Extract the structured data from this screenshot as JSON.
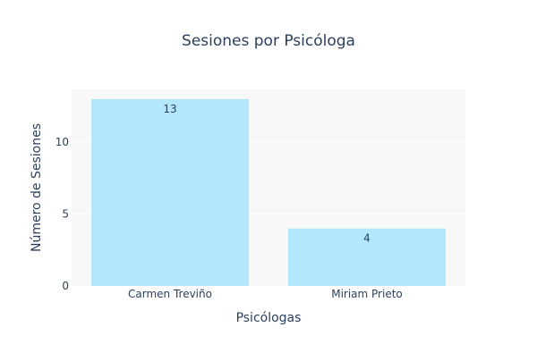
{
  "chart_data": {
    "type": "bar",
    "title": "Sesiones por Psicóloga",
    "xlabel": "Psicólogas",
    "ylabel": "Número de Sesiones",
    "categories": [
      "Carmen Treviño",
      "Miriam Prieto"
    ],
    "values": [
      13,
      4
    ],
    "data_labels": [
      "13",
      "4"
    ],
    "ylim": [
      0,
      13.68
    ],
    "yticks": [
      0,
      5,
      10
    ],
    "grid": true,
    "legend": "none",
    "colors": {
      "bar": "#b3e8fc",
      "plot_bg": "#f8f8f8",
      "grid": "#ffffff",
      "text": "#2a3f5f"
    }
  }
}
